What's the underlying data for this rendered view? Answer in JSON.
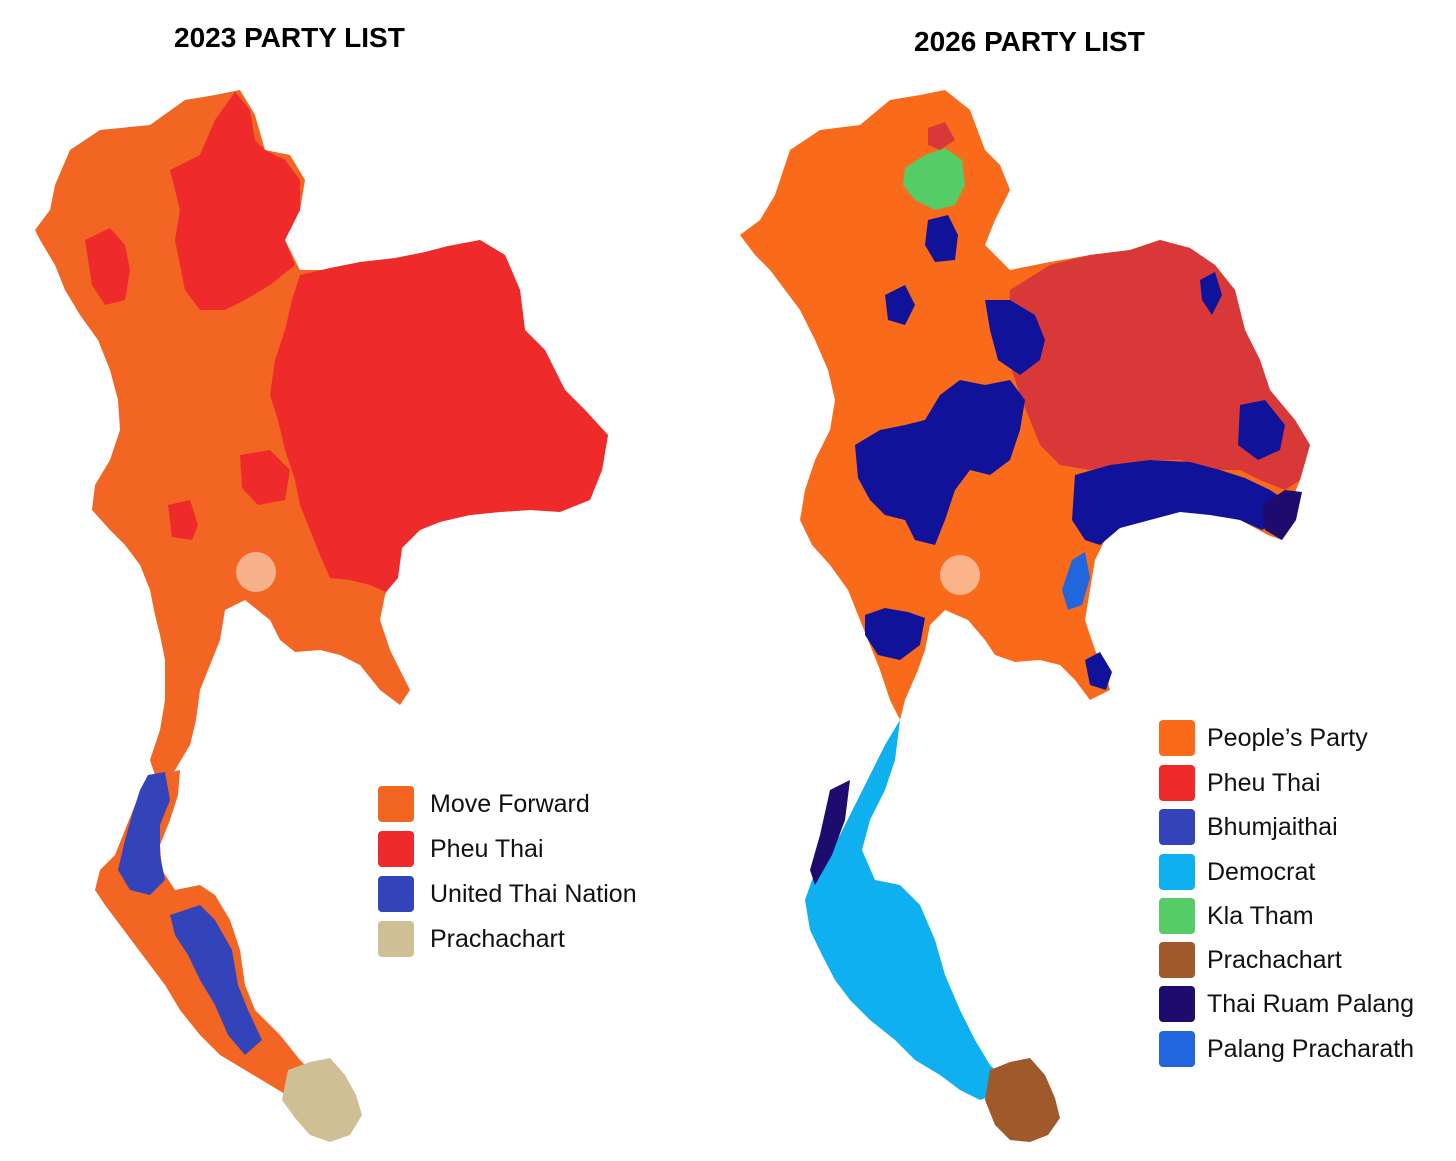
{
  "maps": [
    {
      "title": "2023 PARTY LIST",
      "legend": [
        {
          "label": "Move Forward",
          "color": "#f26522"
        },
        {
          "label": "Pheu Thai",
          "color": "#ee2a2a"
        },
        {
          "label": "United Thai Nation",
          "color": "#3344bb"
        },
        {
          "label": "Prachachart",
          "color": "#cfbf94"
        }
      ]
    },
    {
      "title": "2026 PARTY LIST",
      "legend": [
        {
          "label": "People’s Party",
          "color": "#f96a1b"
        },
        {
          "label": "Pheu Thai",
          "color": "#ee2a2a"
        },
        {
          "label": "Bhumjaithai",
          "color": "#3344bb"
        },
        {
          "label": "Democrat",
          "color": "#0fb0ef"
        },
        {
          "label": "Kla Tham",
          "color": "#55cc66"
        },
        {
          "label": "Prachachart",
          "color": "#a0592a"
        },
        {
          "label": "Thai Ruam Palang",
          "color": "#1e0b6e"
        },
        {
          "label": "Palang Pracharath",
          "color": "#2266dd"
        }
      ]
    }
  ]
}
